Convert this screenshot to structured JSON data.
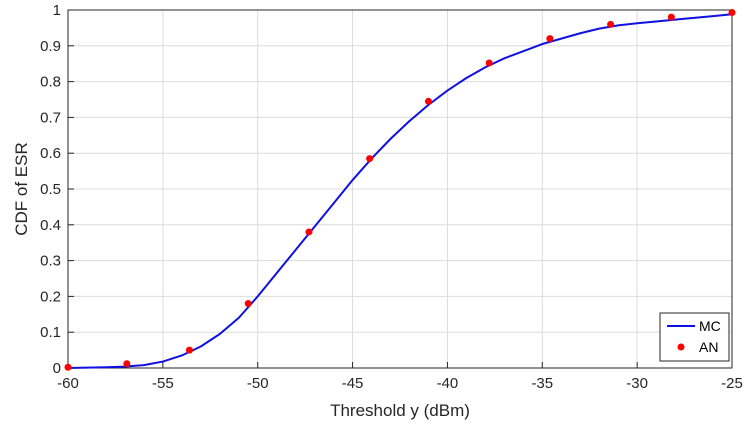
{
  "chart_data": {
    "type": "line",
    "title": "",
    "xlabel": "Threshold y (dBm)",
    "ylabel": "CDF of ESR",
    "xlim": [
      -60,
      -25
    ],
    "ylim": [
      0,
      1
    ],
    "xticks": [
      -60,
      -55,
      -50,
      -45,
      -40,
      -35,
      -30,
      -25
    ],
    "yticks": [
      0,
      0.1,
      0.2,
      0.3,
      0.4,
      0.5,
      0.6,
      0.7,
      0.8,
      0.9,
      1
    ],
    "grid": true,
    "legend_position": "bottom-right",
    "series": [
      {
        "name": "MC",
        "style": "line",
        "color": "#1010e0",
        "x": [
          -60,
          -58,
          -57,
          -56,
          -55,
          -54,
          -53,
          -52,
          -51,
          -50,
          -49,
          -48,
          -47,
          -46,
          -45,
          -44,
          -43,
          -42,
          -41,
          -40,
          -39,
          -38,
          -37,
          -36,
          -35,
          -34,
          -33,
          -32,
          -31,
          -30,
          -29,
          -28,
          -27,
          -26,
          -25
        ],
        "y": [
          0.0,
          0.002,
          0.004,
          0.008,
          0.018,
          0.035,
          0.06,
          0.095,
          0.14,
          0.2,
          0.265,
          0.33,
          0.395,
          0.46,
          0.525,
          0.585,
          0.64,
          0.69,
          0.735,
          0.775,
          0.81,
          0.84,
          0.865,
          0.885,
          0.905,
          0.92,
          0.935,
          0.948,
          0.957,
          0.963,
          0.968,
          0.973,
          0.978,
          0.983,
          0.988
        ]
      },
      {
        "name": "AN",
        "style": "markers",
        "color": "#ff0000",
        "x": [
          -60,
          -56.9,
          -53.6,
          -50.5,
          -47.3,
          -44.1,
          -41.0,
          -37.8,
          -34.6,
          -31.4,
          -28.2,
          -25.0
        ],
        "y": [
          0.002,
          0.012,
          0.05,
          0.18,
          0.38,
          0.585,
          0.745,
          0.852,
          0.92,
          0.96,
          0.98,
          0.993
        ]
      }
    ]
  }
}
